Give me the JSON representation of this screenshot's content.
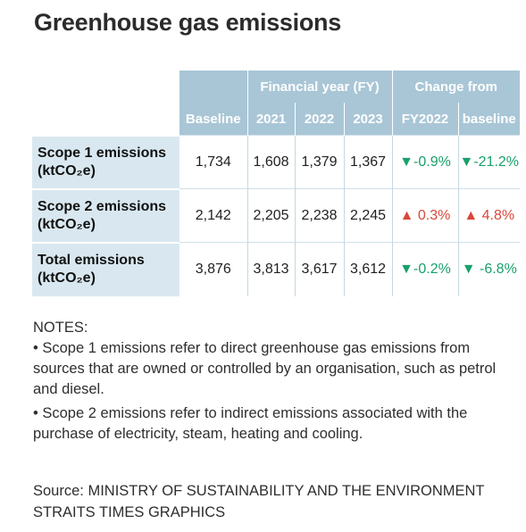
{
  "title": "Greenhouse gas emissions",
  "chart_data": {
    "type": "table",
    "header_groups": {
      "financial_year": "Financial year (FY)",
      "change_from": "Change from"
    },
    "columns": [
      "Baseline",
      "2021",
      "2022",
      "2023",
      "FY2022",
      "baseline"
    ],
    "rows": [
      {
        "label_line1": "Scope 1 emissions",
        "label_line2": "(ktCO₂e)",
        "baseline": "1,734",
        "fy2021": "1,608",
        "fy2022": "1,379",
        "fy2023": "1,367",
        "chg_fy2022": "-0.9%",
        "chg_fy2022_dir": "down",
        "chg_fy2022_arrow": "▼",
        "chg_baseline": "-21.2%",
        "chg_baseline_dir": "down",
        "chg_baseline_arrow": "▼"
      },
      {
        "label_line1": "Scope 2 emissions",
        "label_line2": "(ktCO₂e)",
        "baseline": "2,142",
        "fy2021": "2,205",
        "fy2022": "2,238",
        "fy2023": "2,245",
        "chg_fy2022": "0.3%",
        "chg_fy2022_dir": "up",
        "chg_fy2022_arrow": "▲",
        "chg_baseline": "4.8%",
        "chg_baseline_dir": "up",
        "chg_baseline_arrow": "▲"
      },
      {
        "label_line1": "Total emissions",
        "label_line2": "(ktCO₂e)",
        "baseline": "3,876",
        "fy2021": "3,813",
        "fy2022": "3,617",
        "fy2023": "3,612",
        "chg_fy2022": "-0.2%",
        "chg_fy2022_dir": "down",
        "chg_fy2022_arrow": "▼",
        "chg_baseline": "-6.8%",
        "chg_baseline_dir": "down",
        "chg_baseline_arrow": "▼"
      }
    ],
    "colors": {
      "header": "#a9c6d6",
      "row_label_bg": "#d9e8f0",
      "increase": "#d9483b",
      "decrease": "#19a06b"
    }
  },
  "notes": {
    "heading": "NOTES:",
    "note1": "• Scope 1 emissions refer to direct greenhouse gas emissions from sources that are owned or controlled by an organisation, such as petrol and diesel.",
    "note2": "• Scope 2 emissions refer to indirect emissions associated with the purchase of electricity, steam, heating and cooling."
  },
  "source": {
    "line1": "Source: MINISTRY OF SUSTAINABILITY AND THE ENVIRONMENT",
    "line2": "STRAITS TIMES GRAPHICS"
  }
}
